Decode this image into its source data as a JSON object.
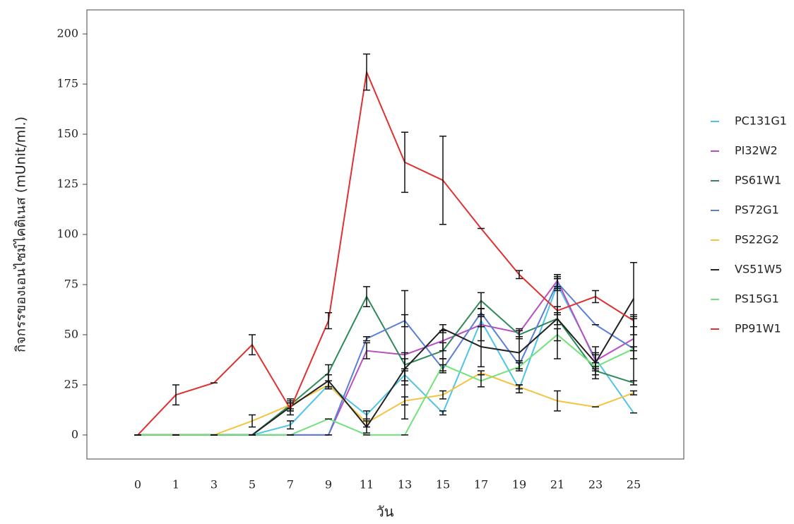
{
  "chart_data": {
    "type": "line",
    "x_label": "วัน",
    "y_label": "กิจกรรของเอนไซม์ไคติเนส (mUnit/ml.)",
    "categories": [
      "0",
      "1",
      "3",
      "5",
      "7",
      "9",
      "11",
      "13",
      "15",
      "17",
      "19",
      "21",
      "23",
      "25"
    ],
    "ylim": [
      -12,
      212
    ],
    "yticks": [
      0,
      25,
      50,
      75,
      100,
      125,
      150,
      175,
      200
    ],
    "series": [
      {
        "name": "PC131G1",
        "color": "#4fc3e8",
        "values": [
          0,
          0,
          0,
          0,
          5,
          25,
          10,
          30,
          11,
          57,
          23,
          75,
          38,
          11
        ],
        "errors": [
          0,
          0,
          0,
          0,
          2,
          2,
          2,
          3,
          1,
          3,
          2,
          3,
          2,
          0
        ]
      },
      {
        "name": "PI32W2",
        "color": "#b84fc0",
        "values": [
          0,
          0,
          0,
          0,
          0,
          0,
          42,
          40,
          47,
          55,
          51,
          77,
          37,
          48
        ],
        "errors": [
          0,
          0,
          0,
          0,
          0,
          0,
          4,
          32,
          5,
          8,
          2,
          3,
          4,
          10
        ]
      },
      {
        "name": "PS61W1",
        "color": "#2e8b57",
        "values": [
          0,
          0,
          0,
          0,
          15,
          31,
          69,
          35,
          42,
          67,
          50,
          58,
          32,
          26
        ],
        "errors": [
          0,
          0,
          0,
          0,
          2,
          4,
          5,
          3,
          4,
          4,
          2,
          3,
          2,
          1
        ]
      },
      {
        "name": "PS72G1",
        "color": "#5b7fd6",
        "values": [
          0,
          0,
          0,
          0,
          0,
          0,
          48,
          57,
          33,
          61,
          35,
          76,
          55,
          43
        ],
        "errors": [
          0,
          0,
          0,
          0,
          0,
          0,
          1,
          3,
          2,
          2,
          2,
          3,
          0,
          16
        ]
      },
      {
        "name": "PS22G2",
        "color": "#f5c242",
        "values": [
          0,
          0,
          0,
          7,
          15,
          25,
          6,
          17,
          20,
          31,
          24,
          17,
          14,
          21
        ],
        "errors": [
          0,
          0,
          0,
          3,
          3,
          2,
          2,
          2,
          2,
          1,
          1,
          5,
          0,
          1
        ]
      },
      {
        "name": "VS51W5",
        "color": "#222222",
        "values": [
          0,
          0,
          0,
          0,
          14,
          27,
          4,
          33,
          53,
          44,
          41,
          58,
          36,
          68
        ],
        "errors": [
          0,
          0,
          0,
          0,
          2,
          3,
          3,
          8,
          2,
          10,
          8,
          20,
          8,
          18
        ]
      },
      {
        "name": "PS15G1",
        "color": "#6fe37a",
        "values": [
          0,
          0,
          0,
          0,
          0,
          8,
          0,
          0,
          35,
          27,
          34,
          50,
          34,
          43
        ],
        "errors": [
          0,
          0,
          0,
          0,
          0,
          0,
          0,
          0,
          3,
          3,
          2,
          3,
          2,
          1
        ]
      },
      {
        "name": "PP91W1",
        "color": "#e03030",
        "values": [
          0,
          20,
          26,
          45,
          13,
          57,
          181,
          136,
          127,
          103,
          80,
          62,
          69,
          57
        ],
        "errors": [
          0,
          5,
          0,
          5,
          3,
          4,
          9,
          15,
          22,
          0,
          2,
          2,
          3,
          3
        ]
      }
    ]
  }
}
